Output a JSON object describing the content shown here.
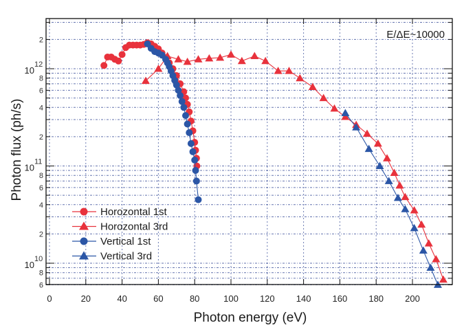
{
  "chart_data": {
    "type": "line",
    "title": "",
    "xlabel": "Photon energy (eV)",
    "ylabel": "Photon flux (ph/s)",
    "xlim": [
      0,
      220
    ],
    "ylim": [
      5500000000.0,
      3000000000000.0
    ],
    "yscale": "log",
    "grid": true,
    "annotation": "E/ΔE~10000",
    "legend_position": "bottom-left",
    "x_ticks": [
      {
        "value": 0,
        "label": "0"
      },
      {
        "value": 20,
        "label": "20"
      },
      {
        "value": 40,
        "label": "40"
      },
      {
        "value": 60,
        "label": "60"
      },
      {
        "value": 80,
        "label": "80"
      },
      {
        "value": 100,
        "label": "100"
      },
      {
        "value": 120,
        "label": "120"
      },
      {
        "value": 140,
        "label": "140"
      },
      {
        "value": 160,
        "label": "160"
      },
      {
        "value": 180,
        "label": "180"
      },
      {
        "value": 200,
        "label": "200"
      }
    ],
    "y_major_ticks": [
      {
        "value": 1000000000000.0,
        "base": "10",
        "exp": "12"
      },
      {
        "value": 100000000000.0,
        "base": "10",
        "exp": "11"
      },
      {
        "value": 10000000000.0,
        "base": "10",
        "exp": "10"
      }
    ],
    "y_minor_labels": [
      {
        "value": 2000000000000.0,
        "label": "2"
      },
      {
        "value": 800000000000.0,
        "label": "8"
      },
      {
        "value": 600000000000.0,
        "label": "6"
      },
      {
        "value": 400000000000.0,
        "label": "4"
      },
      {
        "value": 200000000000.0,
        "label": "2"
      },
      {
        "value": 80000000000.0,
        "label": "8"
      },
      {
        "value": 60000000000.0,
        "label": "6"
      },
      {
        "value": 40000000000.0,
        "label": "4"
      },
      {
        "value": 20000000000.0,
        "label": "2"
      },
      {
        "value": 8000000000.0,
        "label": "8"
      },
      {
        "value": 6000000000.0,
        "label": "6"
      }
    ],
    "series": [
      {
        "name": "Horozontal 1st",
        "color": "#e8323c",
        "marker": "circle",
        "x": [
          30,
          32,
          34,
          36,
          38,
          40,
          42,
          44,
          46,
          48,
          50,
          52,
          54,
          56,
          58,
          60,
          62,
          64,
          66,
          68,
          70,
          72,
          74,
          75,
          76,
          77,
          78,
          79,
          80,
          80.5,
          81,
          81.2
        ],
        "y": [
          1080000000000.0,
          1320000000000.0,
          1320000000000.0,
          1250000000000.0,
          1200000000000.0,
          1400000000000.0,
          1650000000000.0,
          1750000000000.0,
          1750000000000.0,
          1750000000000.0,
          1750000000000.0,
          1780000000000.0,
          1850000000000.0,
          1800000000000.0,
          1700000000000.0,
          1600000000000.0,
          1450000000000.0,
          1300000000000.0,
          1150000000000.0,
          1000000000000.0,
          850000000000.0,
          700000000000.0,
          580000000000.0,
          500000000000.0,
          430000000000.0,
          360000000000.0,
          290000000000.0,
          230000000000.0,
          175000000000.0,
          145000000000.0,
          120000000000.0,
          100000000000.0
        ]
      },
      {
        "name": "Horozontal 3rd",
        "color": "#e8323c",
        "marker": "triangle",
        "x": [
          53,
          60,
          65,
          71,
          76,
          82,
          88,
          94,
          100,
          106,
          113,
          119,
          126,
          132,
          138,
          145,
          151,
          157,
          163,
          169,
          175,
          181,
          186,
          190,
          193,
          196,
          201,
          205,
          209,
          213,
          217
        ],
        "y": [
          750000000000.0,
          1000000000000.0,
          1350000000000.0,
          1250000000000.0,
          1180000000000.0,
          1250000000000.0,
          1280000000000.0,
          1300000000000.0,
          1400000000000.0,
          1200000000000.0,
          1350000000000.0,
          1200000000000.0,
          950000000000.0,
          950000000000.0,
          800000000000.0,
          650000000000.0,
          500000000000.0,
          390000000000.0,
          320000000000.0,
          265000000000.0,
          215000000000.0,
          170000000000.0,
          120000000000.0,
          85000000000.0,
          63000000000.0,
          48000000000.0,
          35000000000.0,
          25000000000.0,
          16000000000.0,
          11000000000.0,
          6800000000.0
        ]
      },
      {
        "name": "Vertical 1st",
        "color": "#2b56a6",
        "marker": "circle",
        "x": [
          54,
          56,
          58,
          60,
          62,
          64,
          65,
          66,
          67,
          68,
          69,
          70,
          71,
          72,
          73,
          74,
          75,
          76,
          77,
          78,
          79,
          80,
          80.5,
          81,
          82
        ],
        "y": [
          1800000000000.0,
          1620000000000.0,
          1500000000000.0,
          1450000000000.0,
          1380000000000.0,
          1250000000000.0,
          1150000000000.0,
          1050000000000.0,
          950000000000.0,
          850000000000.0,
          760000000000.0,
          680000000000.0,
          600000000000.0,
          530000000000.0,
          460000000000.0,
          400000000000.0,
          330000000000.0,
          270000000000.0,
          220000000000.0,
          170000000000.0,
          140000000000.0,
          115000000000.0,
          90000000000.0,
          70000000000.0,
          45000000000.0
        ]
      },
      {
        "name": "Vertical 3rd",
        "color": "#2b56a6",
        "marker": "triangle",
        "x": [
          163,
          169,
          176,
          182,
          187,
          192,
          196,
          201,
          206,
          210,
          214
        ],
        "y": [
          350000000000.0,
          250000000000.0,
          150000000000.0,
          100000000000.0,
          70000000000.0,
          47000000000.0,
          36000000000.0,
          23000000000.0,
          13500000000.0,
          9000000000.0,
          6000000000.0
        ]
      }
    ]
  }
}
